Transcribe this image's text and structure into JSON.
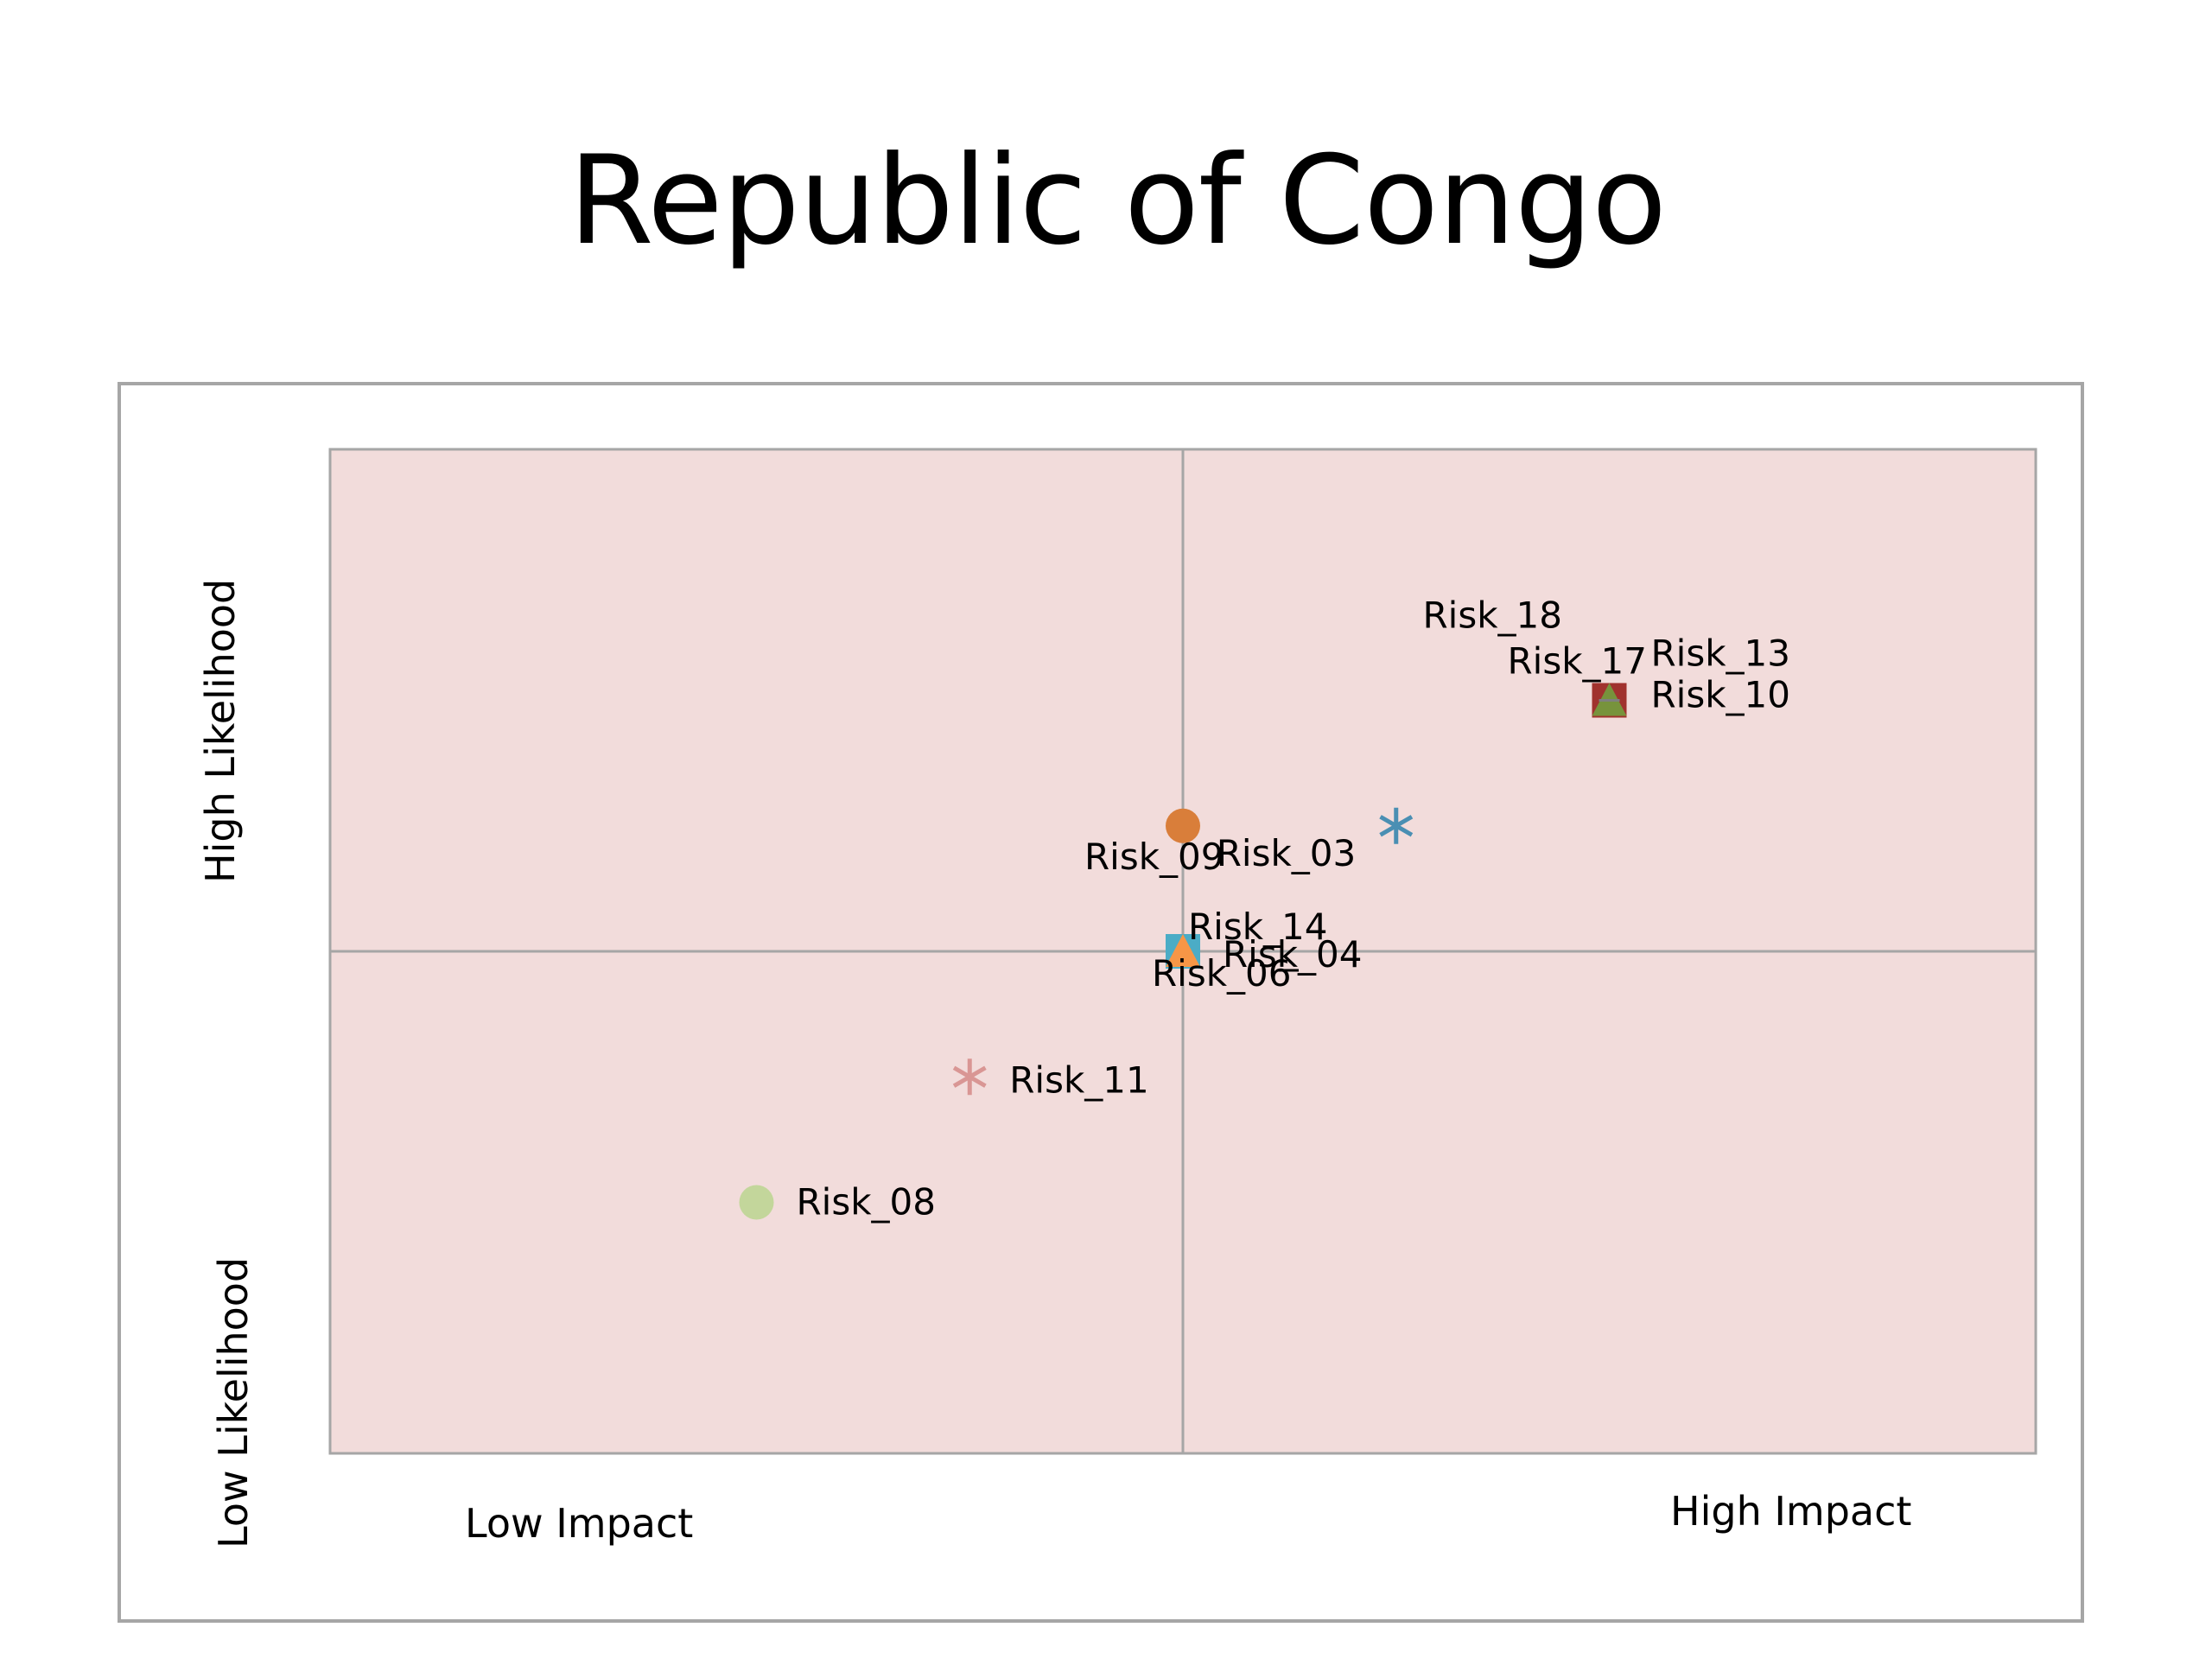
{
  "slide": {
    "title": "Republic of Congo"
  },
  "chart_data": {
    "type": "scatter",
    "title": "Republic of Congo",
    "xlim": [
      0,
      4
    ],
    "ylim": [
      0,
      4
    ],
    "grid": false,
    "quadrant_lines": {
      "x": 2,
      "y": 2
    },
    "plot_background": "#f2dcdb",
    "axis_labels": {
      "x_low": "Low Impact",
      "x_high": "High Impact",
      "y_low": "Low Likelihood",
      "y_high": "High Likelihood"
    },
    "points": [
      {
        "name": "Risk_08",
        "x": 1.0,
        "y": 1.0,
        "marker": "circle",
        "color": "#c3d69b"
      },
      {
        "name": "Risk_11",
        "x": 1.5,
        "y": 1.5,
        "marker": "star",
        "color": "#d99694"
      },
      {
        "name": "Risk_06",
        "x": 2.0,
        "y": 2.0,
        "marker": "square",
        "color": "#4bacc6"
      },
      {
        "name": "Risk_14",
        "x": 2.0,
        "y": 2.0,
        "marker": "triangle",
        "color": "#f79646"
      },
      {
        "name": "Risk_04",
        "x": 2.0,
        "y": 2.0,
        "marker": "dash",
        "color": "#000000"
      },
      {
        "name": "Risk_09",
        "x": 2.0,
        "y": 2.5,
        "marker": "circle",
        "color": "#d97e3a"
      },
      {
        "name": "Risk_03",
        "x": 2.5,
        "y": 2.5,
        "marker": "star",
        "color": "#4a8fb3"
      },
      {
        "name": "Risk_18",
        "x": 3.0,
        "y": 3.0,
        "marker": "dash",
        "color": "#1f3864"
      },
      {
        "name": "Risk_17",
        "x": 3.0,
        "y": 3.0,
        "marker": "square",
        "color": "#a0322e"
      },
      {
        "name": "Risk_13",
        "x": 3.0,
        "y": 3.0,
        "marker": "triangle",
        "color": "#77933c"
      },
      {
        "name": "Risk_10",
        "x": 3.0,
        "y": 3.0,
        "marker": "dash",
        "color": "#7f7f7f"
      }
    ]
  }
}
